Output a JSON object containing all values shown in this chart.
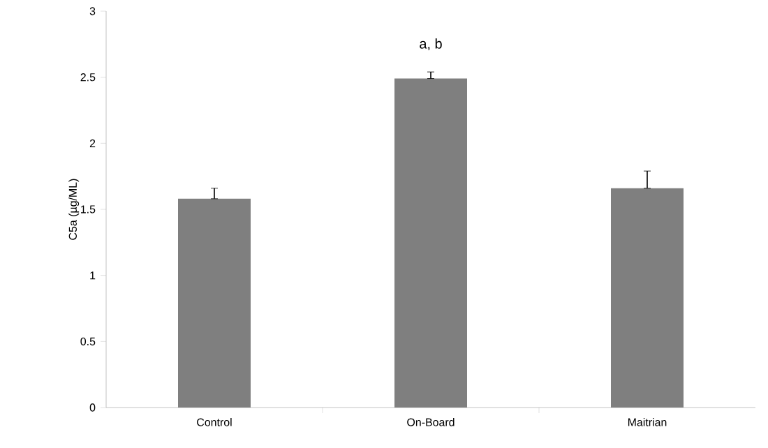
{
  "chart_data": {
    "type": "bar",
    "ylabel": "C5a (µg/ML)",
    "categories": [
      "Control",
      "On-Board",
      "Maitrian"
    ],
    "values": [
      1.58,
      2.49,
      1.66
    ],
    "errors": [
      [
        1.58,
        1.66
      ],
      [
        2.49,
        2.54
      ],
      [
        1.66,
        1.79
      ]
    ],
    "color": "#7f7f7f",
    "ylim": [
      0,
      3
    ],
    "yticks": [
      0,
      0.5,
      1,
      1.5,
      2,
      2.5,
      3
    ],
    "annotations": [
      {
        "text": "a, b",
        "x": "On-Board",
        "y": 2.54
      }
    ]
  }
}
